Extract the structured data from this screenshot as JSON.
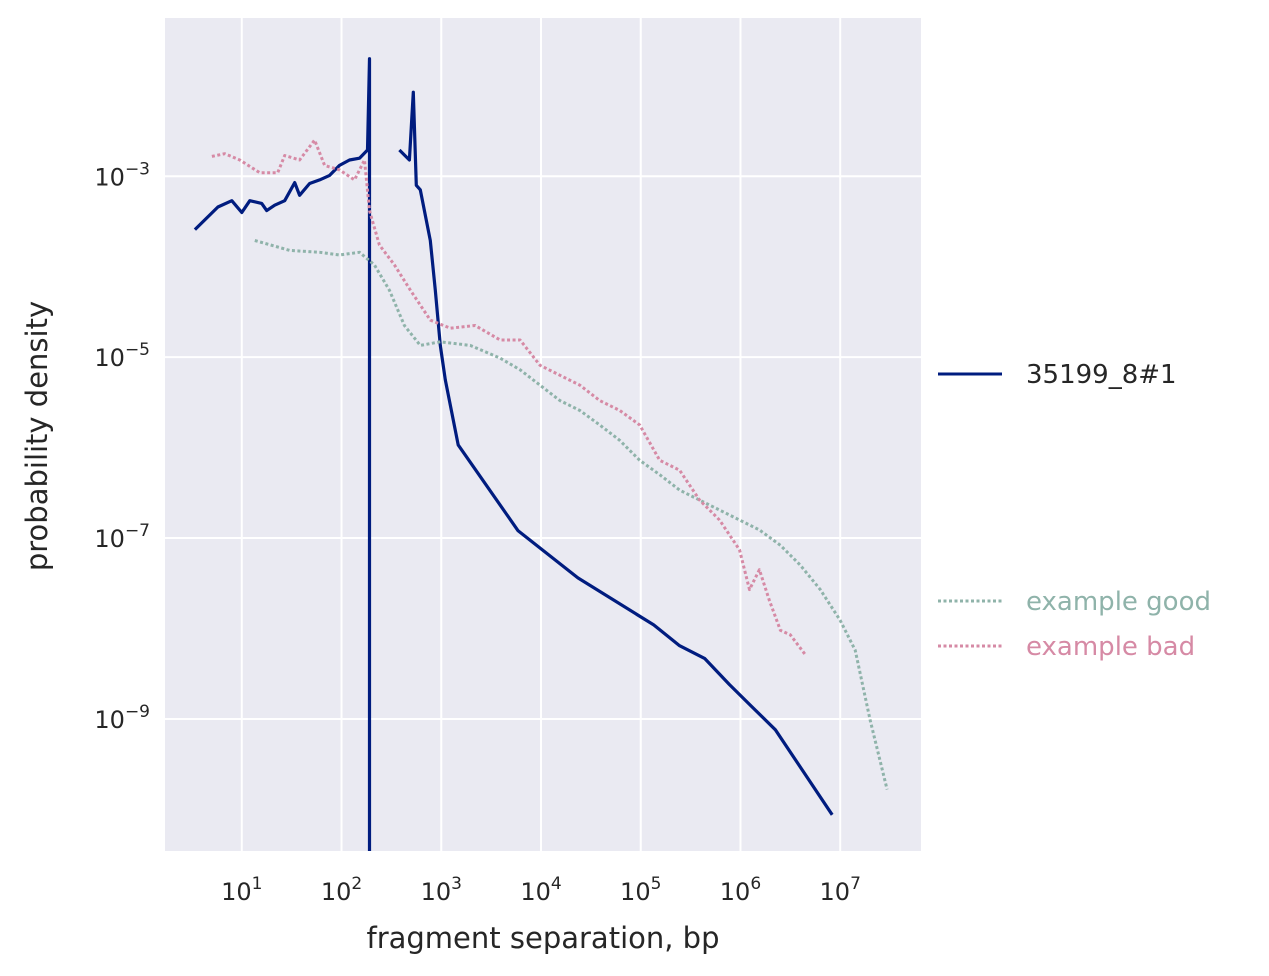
{
  "chart_data": {
    "type": "line",
    "title": "",
    "xlabel": "fragment separation, bp",
    "ylabel": "probability density",
    "xscale": "log",
    "yscale": "log",
    "xlim_log10": [
      0.23,
      7.81
    ],
    "ylim_log10": [
      -10.46,
      -1.25
    ],
    "grid": true,
    "x_tick_base": "10",
    "x_tick_exponents": [
      "1",
      "2",
      "3",
      "4",
      "5",
      "6",
      "7"
    ],
    "y_tick_base": "10",
    "y_tick_exponents": [
      "−3",
      "−5",
      "−7",
      "−9"
    ],
    "legend_placement": "right-outside",
    "series": [
      {
        "name": "35199_8#1",
        "style": "solid",
        "color": "#001c7f",
        "points_log10": [
          [
            0.53,
            -3.59
          ],
          [
            0.76,
            -3.34
          ],
          [
            0.9,
            -3.27
          ],
          [
            1.0,
            -3.4
          ],
          [
            1.08,
            -3.27
          ],
          [
            1.2,
            -3.3
          ],
          [
            1.25,
            -3.38
          ],
          [
            1.33,
            -3.32
          ],
          [
            1.43,
            -3.27
          ],
          [
            1.53,
            -3.07
          ],
          [
            1.58,
            -3.21
          ],
          [
            1.68,
            -3.08
          ],
          [
            1.78,
            -3.04
          ],
          [
            1.88,
            -2.99
          ],
          [
            1.98,
            -2.88
          ],
          [
            2.08,
            -2.82
          ],
          [
            2.18,
            -2.8
          ],
          [
            2.26,
            -2.71
          ],
          [
            2.28,
            -1.7
          ],
          [
            2.28,
            -10.6
          ],
          null,
          [
            2.58,
            -2.71
          ],
          [
            2.68,
            -2.82
          ],
          [
            2.72,
            -2.07
          ],
          [
            2.75,
            -3.1
          ],
          [
            2.79,
            -3.15
          ],
          [
            2.84,
            -3.43
          ],
          [
            2.89,
            -3.71
          ],
          [
            2.94,
            -4.26
          ],
          [
            2.99,
            -4.87
          ],
          [
            3.04,
            -5.25
          ],
          [
            3.17,
            -5.97
          ],
          [
            3.77,
            -6.92
          ],
          [
            4.37,
            -7.44
          ],
          [
            5.13,
            -7.96
          ],
          [
            5.39,
            -8.19
          ],
          [
            5.64,
            -8.33
          ],
          [
            5.89,
            -8.62
          ],
          [
            6.1,
            -8.85
          ],
          [
            6.35,
            -9.12
          ],
          [
            6.92,
            -10.06
          ]
        ]
      },
      {
        "name": "example good",
        "style": "dotted",
        "color": "#8fb3aa",
        "points_log10": [
          [
            1.13,
            -3.71
          ],
          [
            1.48,
            -3.82
          ],
          [
            1.78,
            -3.84
          ],
          [
            1.98,
            -3.87
          ],
          [
            2.18,
            -3.84
          ],
          [
            2.33,
            -3.98
          ],
          [
            2.48,
            -4.26
          ],
          [
            2.63,
            -4.65
          ],
          [
            2.79,
            -4.87
          ],
          [
            2.99,
            -4.83
          ],
          [
            3.29,
            -4.87
          ],
          [
            3.59,
            -5.01
          ],
          [
            3.79,
            -5.14
          ],
          [
            3.99,
            -5.31
          ],
          [
            4.19,
            -5.48
          ],
          [
            4.39,
            -5.59
          ],
          [
            4.59,
            -5.75
          ],
          [
            4.79,
            -5.92
          ],
          [
            4.99,
            -6.14
          ],
          [
            5.19,
            -6.3
          ],
          [
            5.39,
            -6.47
          ],
          [
            5.59,
            -6.58
          ],
          [
            5.79,
            -6.69
          ],
          [
            5.99,
            -6.8
          ],
          [
            6.19,
            -6.91
          ],
          [
            6.4,
            -7.08
          ],
          [
            6.6,
            -7.3
          ],
          [
            6.8,
            -7.57
          ],
          [
            7.0,
            -7.91
          ],
          [
            7.15,
            -8.24
          ],
          [
            7.3,
            -9.01
          ],
          [
            7.47,
            -9.78
          ]
        ]
      },
      {
        "name": "example bad",
        "style": "dotted",
        "color": "#d68aa5",
        "points_log10": [
          [
            0.7,
            -2.78
          ],
          [
            0.83,
            -2.75
          ],
          [
            0.98,
            -2.82
          ],
          [
            1.18,
            -2.96
          ],
          [
            1.36,
            -2.96
          ],
          [
            1.43,
            -2.77
          ],
          [
            1.58,
            -2.82
          ],
          [
            1.73,
            -2.6
          ],
          [
            1.83,
            -2.88
          ],
          [
            1.98,
            -2.93
          ],
          [
            2.13,
            -3.04
          ],
          [
            2.23,
            -2.82
          ],
          [
            2.28,
            -3.38
          ],
          [
            2.38,
            -3.76
          ],
          [
            2.53,
            -3.98
          ],
          [
            2.69,
            -4.26
          ],
          [
            2.89,
            -4.59
          ],
          [
            3.09,
            -4.68
          ],
          [
            3.34,
            -4.65
          ],
          [
            3.59,
            -4.81
          ],
          [
            3.79,
            -4.81
          ],
          [
            3.99,
            -5.09
          ],
          [
            4.19,
            -5.2
          ],
          [
            4.39,
            -5.31
          ],
          [
            4.59,
            -5.48
          ],
          [
            4.79,
            -5.59
          ],
          [
            4.99,
            -5.75
          ],
          [
            5.19,
            -6.14
          ],
          [
            5.39,
            -6.25
          ],
          [
            5.59,
            -6.58
          ],
          [
            5.79,
            -6.8
          ],
          [
            5.99,
            -7.13
          ],
          [
            6.09,
            -7.57
          ],
          [
            6.19,
            -7.35
          ],
          [
            6.29,
            -7.69
          ],
          [
            6.4,
            -8.02
          ],
          [
            6.5,
            -8.07
          ],
          [
            6.65,
            -8.29
          ]
        ]
      }
    ]
  }
}
